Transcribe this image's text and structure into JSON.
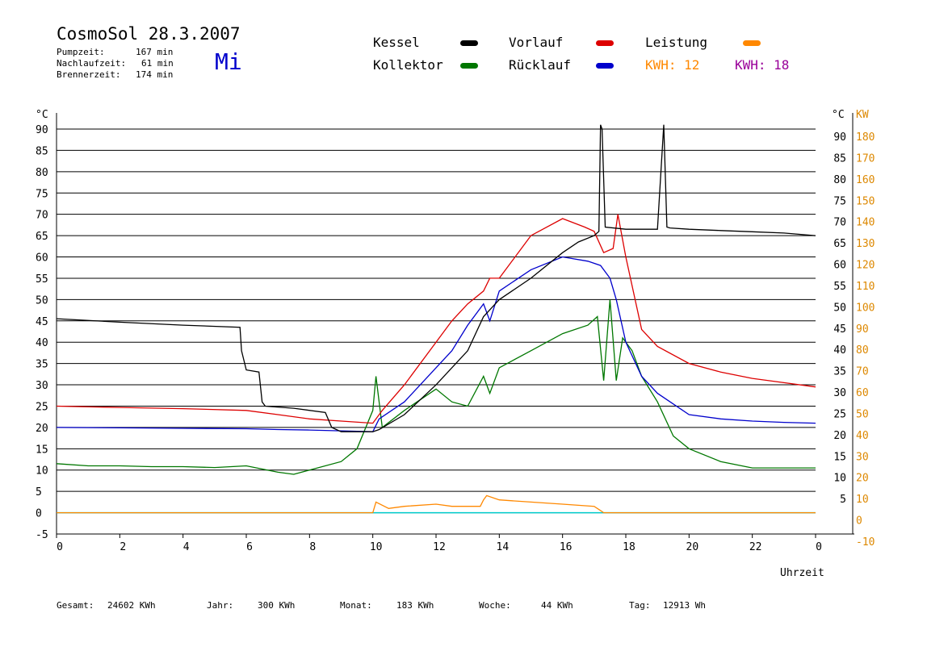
{
  "header": {
    "title": "CosmoSol 28.3.2007",
    "weekday": "Mi",
    "stats": [
      {
        "label": "Pumpzeit:",
        "value": "167 min"
      },
      {
        "label": "Nachlaufzeit:",
        "value": "61 min"
      },
      {
        "label": "Brennerzeit:",
        "value": "174 min"
      }
    ]
  },
  "legend": {
    "kessel": "Kessel",
    "vorlauf": "Vorlauf",
    "leistung": "Leistung",
    "kollektor": "Kollektor",
    "ruecklauf": "Rücklauf",
    "kwh1_label": "KWH:",
    "kwh1_value": "12",
    "kwh2_label": "KWH:",
    "kwh2_value": "18"
  },
  "colors": {
    "kessel": "#000000",
    "vorlauf": "#dd0000",
    "leistung": "#ff8800",
    "kollektor": "#007700",
    "ruecklauf": "#0000cc",
    "kwh2": "#990099",
    "pump": "#00cccc",
    "power_axis": "#dd8800"
  },
  "footer": [
    {
      "label": "Gesamt:",
      "value": "24602 KWh"
    },
    {
      "label": "Jahr:",
      "value": "300 KWh"
    },
    {
      "label": "Monat:",
      "value": "183 KWh"
    },
    {
      "label": "Woche:",
      "value": "44 KWh"
    },
    {
      "label": "Tag:",
      "value": "12913 Wh"
    }
  ],
  "chart_data": {
    "type": "line",
    "xlabel": "Uhrzeit",
    "ylabel_left": "°C",
    "ylabel_right_temp": "°C",
    "ylabel_right_power": "KW",
    "xlim": [
      0,
      24
    ],
    "ylim": [
      -5,
      90
    ],
    "power_ylim": [
      -10,
      180
    ],
    "x_ticks": [
      "0",
      "2",
      "4",
      "6",
      "8",
      "10",
      "12",
      "14",
      "16",
      "18",
      "20",
      "22",
      "0"
    ],
    "y_ticks": [
      -5,
      0,
      5,
      10,
      15,
      20,
      25,
      30,
      35,
      40,
      45,
      50,
      55,
      60,
      65,
      70,
      75,
      80,
      85,
      90
    ],
    "power_ticks": [
      -10,
      0,
      10,
      20,
      30,
      40,
      50,
      60,
      70,
      80,
      90,
      100,
      110,
      120,
      130,
      140,
      150,
      160,
      170,
      180
    ],
    "grid": "horizontal",
    "series": [
      {
        "name": "Kessel",
        "key": "kessel",
        "x": [
          0,
          2,
          4,
          5.8,
          5.85,
          6.0,
          6.4,
          6.5,
          6.6,
          7.5,
          8.5,
          8.7,
          9.0,
          10.0,
          10.2,
          11,
          12,
          13,
          13.5,
          14,
          15,
          16,
          16.5,
          17.0,
          17.15,
          17.2,
          17.25,
          17.35,
          18,
          19,
          19.2,
          19.3,
          19.4,
          20,
          21,
          22,
          23,
          24
        ],
        "y": [
          45.5,
          44.7,
          44.0,
          43.5,
          38,
          33.5,
          33,
          26,
          25,
          24.5,
          23.5,
          20,
          19,
          19,
          19.5,
          23,
          30,
          38,
          46,
          50,
          55,
          61,
          63.5,
          65,
          66,
          91,
          90,
          67,
          66.5,
          66.5,
          91,
          67,
          66.8,
          66.5,
          66.2,
          65.9,
          65.6,
          65.0
        ]
      },
      {
        "name": "Vorlauf",
        "key": "vorlauf",
        "x": [
          0,
          2,
          4,
          6,
          7,
          8,
          9,
          10,
          10.3,
          11,
          12,
          12.5,
          13,
          13.5,
          13.7,
          14,
          15,
          16,
          16.7,
          17.0,
          17.3,
          17.6,
          17.75,
          18,
          18.5,
          19,
          20,
          21,
          22,
          23,
          24
        ],
        "y": [
          25,
          24.7,
          24.4,
          24,
          23,
          22,
          21.5,
          21,
          24,
          30,
          40,
          45,
          49,
          52,
          55,
          55,
          65,
          69,
          67,
          66,
          61,
          62,
          70,
          60,
          43,
          39,
          35,
          33,
          31.5,
          30.5,
          29.5
        ]
      },
      {
        "name": "Rücklauf",
        "key": "ruecklauf",
        "x": [
          0,
          2,
          4,
          6,
          7,
          8,
          9,
          10,
          10.2,
          11,
          12,
          12.5,
          13,
          13.5,
          13.7,
          14,
          15,
          16,
          16.8,
          17.2,
          17.5,
          17.7,
          18,
          18.5,
          19,
          20,
          21,
          22,
          23,
          24
        ],
        "y": [
          20,
          19.9,
          19.8,
          19.7,
          19.5,
          19.4,
          19.2,
          19,
          22,
          26,
          34,
          38,
          44,
          49,
          45,
          52,
          57,
          60,
          59,
          58,
          55,
          50,
          40,
          32,
          28,
          23,
          22,
          21.5,
          21.2,
          21.0
        ]
      },
      {
        "name": "Kollektor",
        "key": "kollektor",
        "x": [
          0,
          1,
          2,
          3,
          4,
          5,
          6,
          7,
          7.5,
          8,
          9,
          9.5,
          10,
          10.1,
          10.3,
          11,
          12,
          12.5,
          13,
          13.5,
          13.7,
          14,
          15,
          16,
          16.8,
          17.1,
          17.3,
          17.5,
          17.7,
          17.9,
          18.2,
          18.5,
          19,
          19.5,
          20,
          21,
          22,
          23,
          24
        ],
        "y": [
          11.5,
          11,
          11,
          10.8,
          10.8,
          10.6,
          11,
          9.5,
          9,
          10,
          12,
          15,
          24,
          32,
          20,
          24,
          29,
          26,
          25,
          32,
          28,
          34,
          38,
          42,
          44,
          46,
          31,
          50,
          31,
          41,
          38,
          32,
          26,
          18,
          15,
          12,
          10.5,
          10.5,
          10.5
        ]
      },
      {
        "name": "Leistung",
        "key": "leistung",
        "x": [
          0,
          10.0,
          10.1,
          10.5,
          11,
          12,
          12.5,
          12.7,
          13.4,
          13.5,
          13.6,
          14,
          15,
          16,
          17.0,
          17.2,
          17.3,
          24
        ],
        "y": [
          0,
          0,
          2.5,
          1,
          1.5,
          2,
          1.5,
          1.5,
          1.5,
          3,
          4,
          3,
          2.5,
          2,
          1.5,
          0.5,
          0,
          0
        ]
      }
    ]
  }
}
